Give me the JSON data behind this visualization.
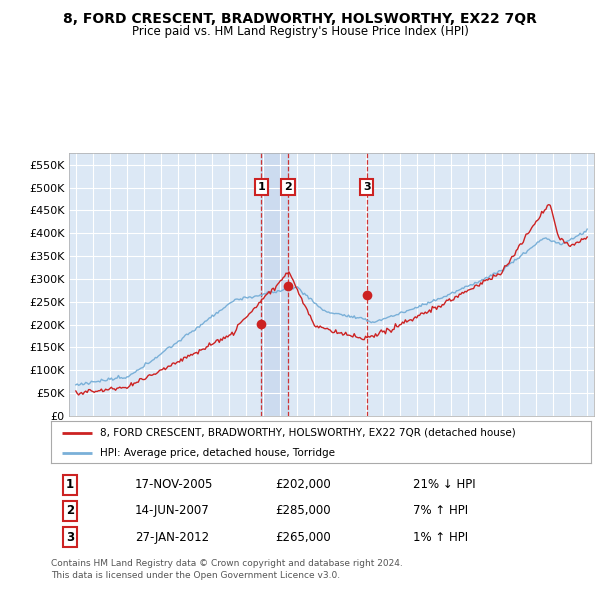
{
  "title": "8, FORD CRESCENT, BRADWORTHY, HOLSWORTHY, EX22 7QR",
  "subtitle": "Price paid vs. HM Land Registry's House Price Index (HPI)",
  "ylim": [
    0,
    575000
  ],
  "yticks": [
    0,
    50000,
    100000,
    150000,
    200000,
    250000,
    300000,
    350000,
    400000,
    450000,
    500000,
    550000
  ],
  "ytick_labels": [
    "£0",
    "£50K",
    "£100K",
    "£150K",
    "£200K",
    "£250K",
    "£300K",
    "£350K",
    "£400K",
    "£450K",
    "£500K",
    "£550K"
  ],
  "plot_bg_color": "#dce8f5",
  "grid_color": "#ffffff",
  "red_line_color": "#cc2222",
  "blue_line_color": "#7ab0d8",
  "vline_color": "#cc2222",
  "shade_color": "#c8d8ee",
  "transactions": [
    {
      "num": 1,
      "date": "17-NOV-2005",
      "price": 202000,
      "x": 2005.88
    },
    {
      "num": 2,
      "date": "14-JUN-2007",
      "price": 285000,
      "x": 2007.45
    },
    {
      "num": 3,
      "date": "27-JAN-2012",
      "price": 265000,
      "x": 2012.07
    }
  ],
  "legend_label_red": "8, FORD CRESCENT, BRADWORTHY, HOLSWORTHY, EX22 7QR (detached house)",
  "legend_label_blue": "HPI: Average price, detached house, Torridge",
  "footer_line1": "Contains HM Land Registry data © Crown copyright and database right 2024.",
  "footer_line2": "This data is licensed under the Open Government Licence v3.0.",
  "table_rows": [
    {
      "num": "1",
      "date": "17-NOV-2005",
      "price": "£202,000",
      "pct": "21% ↓ HPI"
    },
    {
      "num": "2",
      "date": "14-JUN-2007",
      "price": "£285,000",
      "pct": "7% ↑ HPI"
    },
    {
      "num": "3",
      "date": "27-JAN-2012",
      "price": "£265,000",
      "pct": "1% ↑ HPI"
    }
  ]
}
